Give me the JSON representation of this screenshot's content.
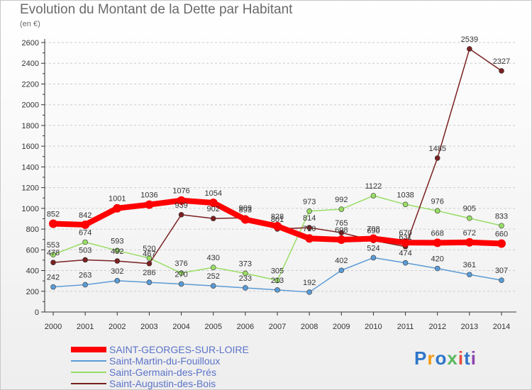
{
  "title": "Evolution du Montant de la Dette par Habitant",
  "unit_label": "(en €)",
  "logo_text": "Proxiti",
  "colors": {
    "axis": "#333333",
    "grid": "#cccccc",
    "title": "#6a6a6a",
    "legend_text": "#5b73c8"
  },
  "chart_data": {
    "type": "line",
    "x": [
      "2000",
      "2001",
      "2002",
      "2003",
      "2004",
      "2005",
      "2006",
      "2007",
      "2008",
      "2009",
      "2010",
      "2011",
      "2012",
      "2013",
      "2014"
    ],
    "ylim": [
      0,
      2600
    ],
    "yticks": [
      0,
      200,
      400,
      600,
      800,
      1000,
      1200,
      1400,
      1600,
      1800,
      2000,
      2200,
      2400,
      2600
    ],
    "grid": "horizontal dashed",
    "legend_position": "bottom-left",
    "series": [
      {
        "name": "SAINT-GEORGES-SUR-LOIRE",
        "color": "#ff0000",
        "values": [
          852,
          842,
          1001,
          1036,
          1076,
          1054,
          893,
          828,
          710,
          698,
          708,
          670,
          668,
          672,
          660
        ]
      },
      {
        "name": "Saint-Martin-du-Fouilloux",
        "color": "#5b9bd5",
        "values": [
          242,
          263,
          302,
          286,
          270,
          252,
          233,
          213,
          192,
          402,
          524,
          474,
          420,
          361,
          307
        ]
      },
      {
        "name": "Saint-Germain-des-Prés",
        "color": "#99dd66",
        "values": [
          553,
          674,
          593,
          520,
          376,
          430,
          373,
          305,
          973,
          992,
          1122,
          1038,
          976,
          905,
          833
        ]
      },
      {
        "name": "Saint-Augustin-des-Bois",
        "color": "#7a2020",
        "values": [
          478,
          503,
          492,
          467,
          939,
          902,
          909,
          801,
          814,
          765,
          690,
          631,
          1485,
          2539,
          2327
        ]
      }
    ]
  }
}
